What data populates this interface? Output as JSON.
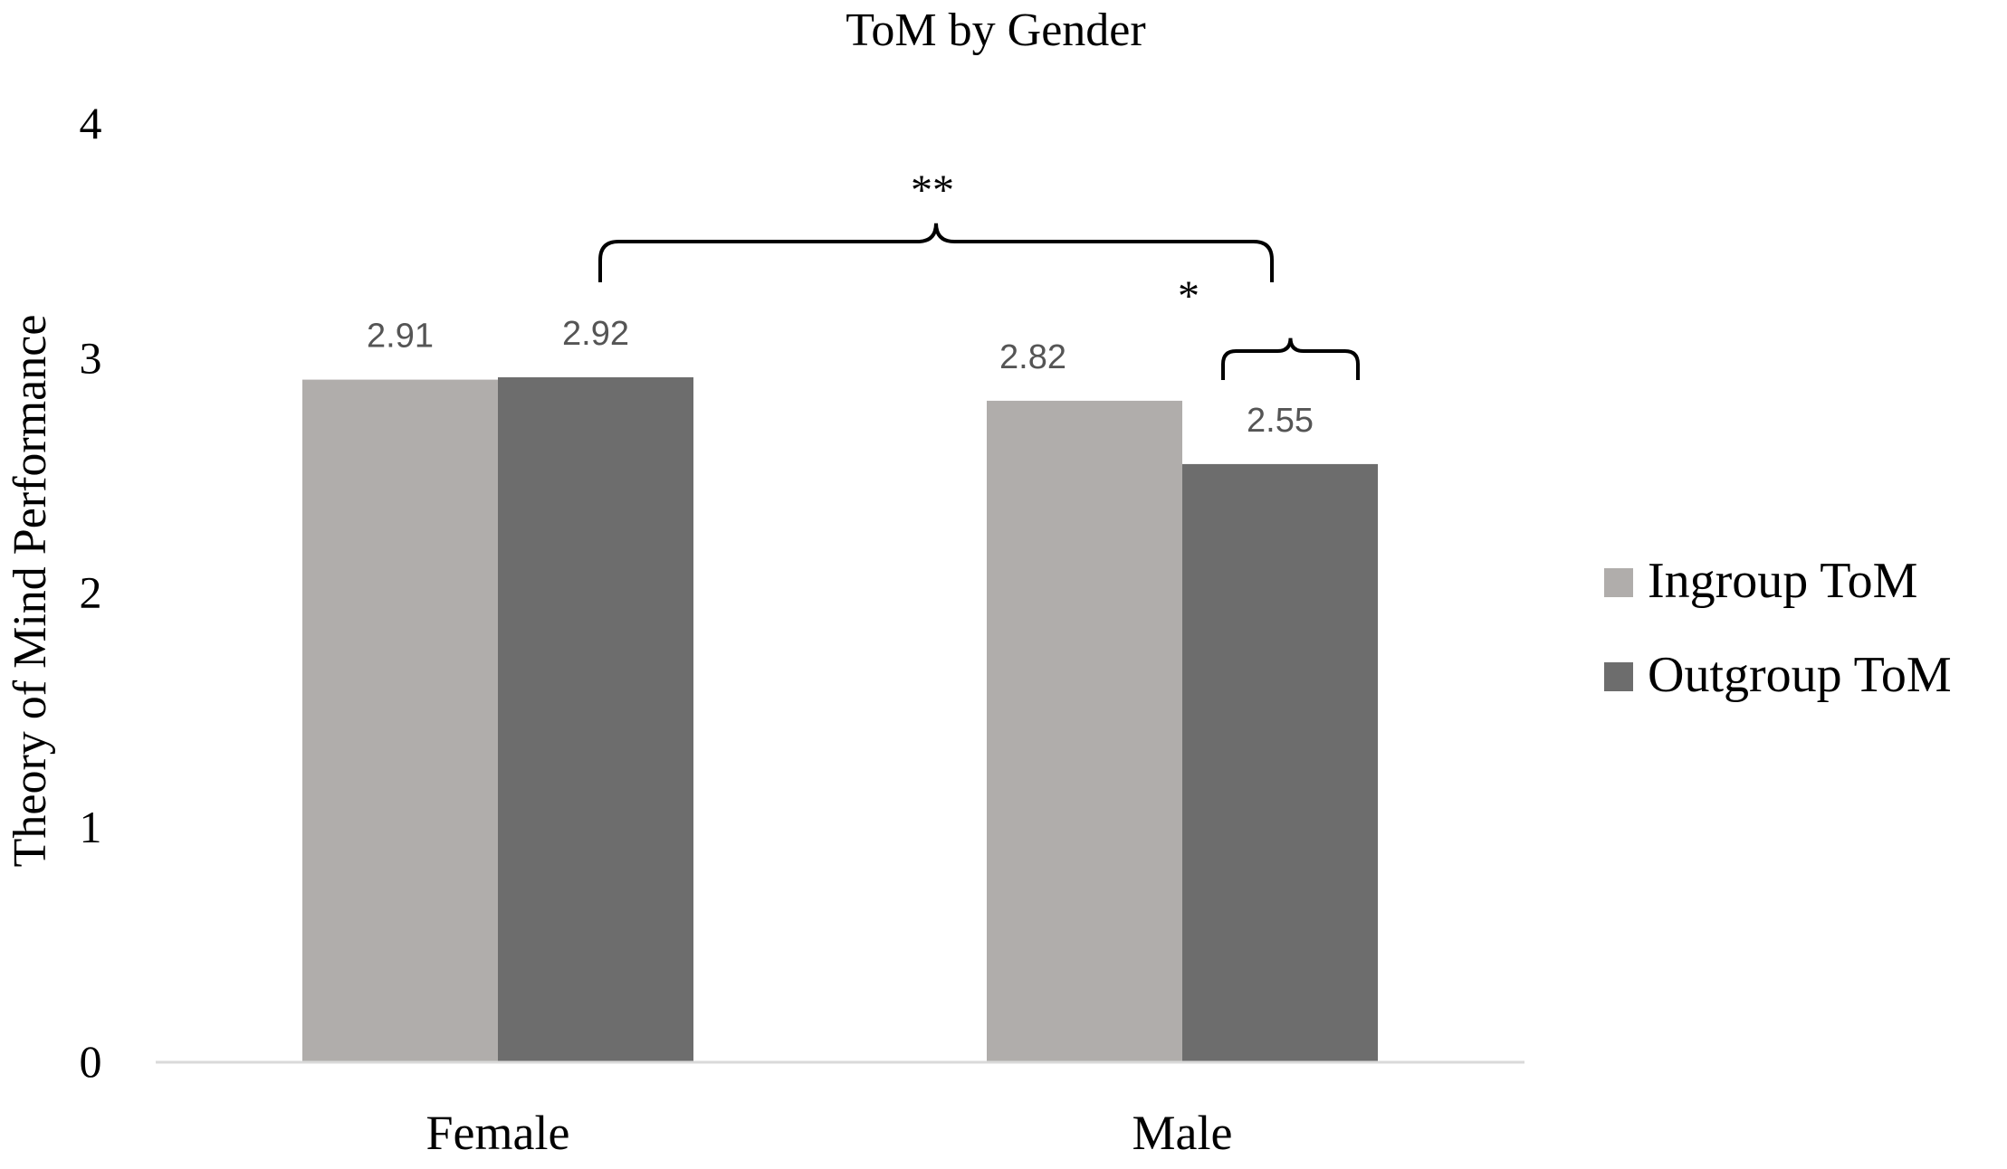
{
  "chart_data": {
    "type": "bar",
    "title": "ToM by Gender",
    "ylabel": "Theory of Mind Performance",
    "xlabel": "",
    "categories": [
      "Female",
      "Male"
    ],
    "ylim": [
      0,
      4
    ],
    "yticks": [
      "0",
      "1",
      "2",
      "3",
      "4"
    ],
    "grid": false,
    "legend_position": "right",
    "series": [
      {
        "name": "Ingroup ToM",
        "values": [
          2.91,
          2.82
        ],
        "labels": [
          "2.91",
          "2.82"
        ],
        "color": "#b0adab"
      },
      {
        "name": "Outgroup ToM",
        "values": [
          2.92,
          2.55
        ],
        "labels": [
          "2.92",
          "2.55"
        ],
        "color": "#6d6d6d"
      }
    ],
    "annotations": [
      {
        "text": "**",
        "between": "Female vs Male"
      },
      {
        "text": "*",
        "between": "Male Ingroup ToM vs Male Outgroup ToM"
      }
    ]
  }
}
